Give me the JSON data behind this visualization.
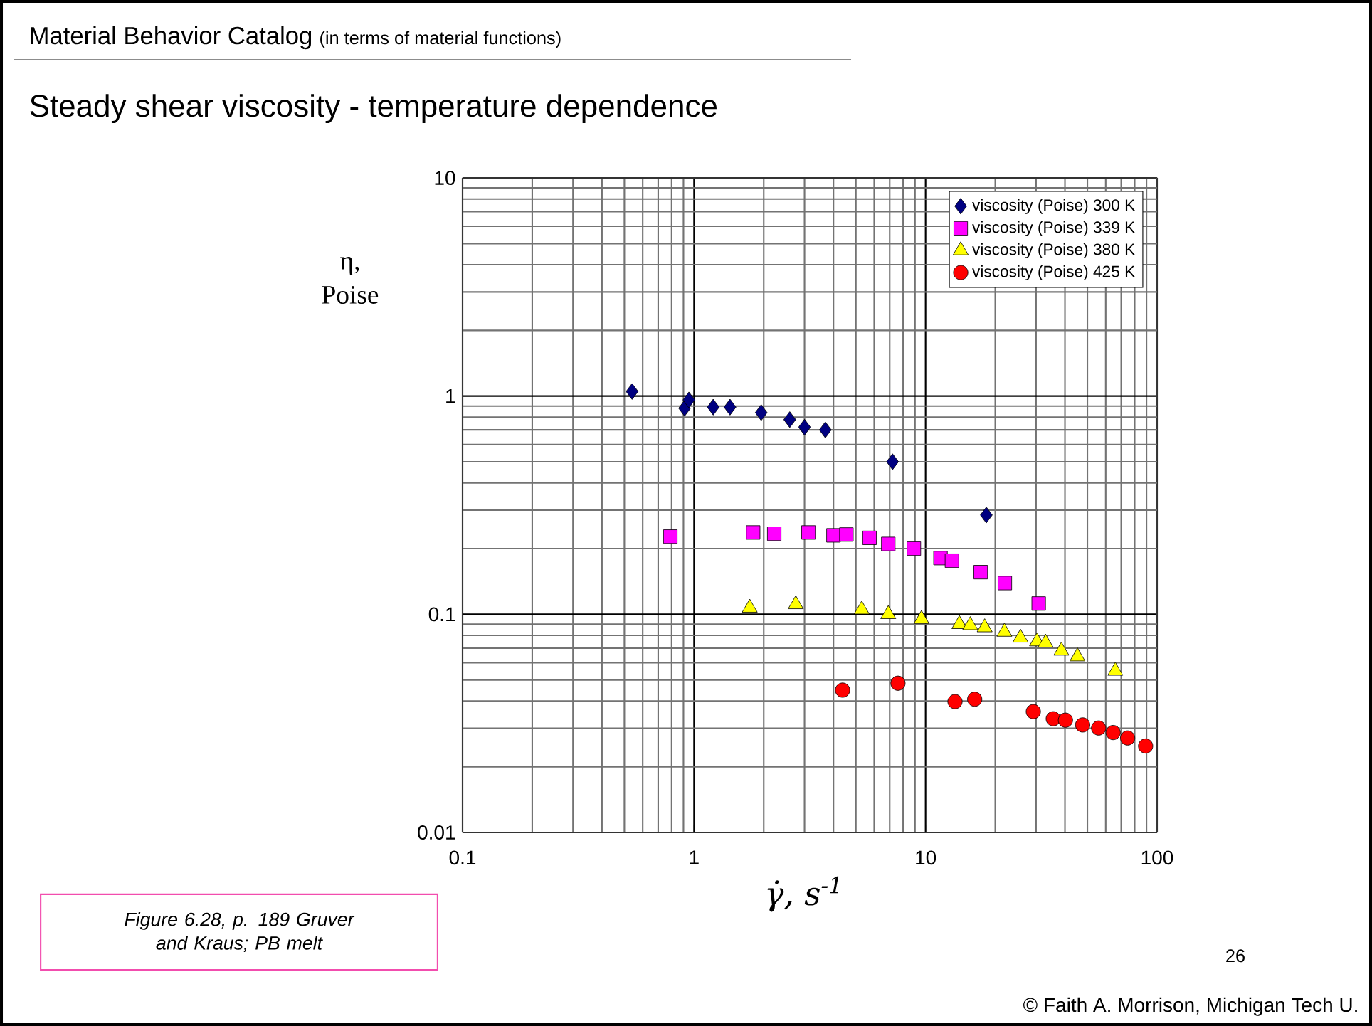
{
  "chart_data": {
    "type": "scatter",
    "title": "Material Behavior Catalog",
    "subtitle": "Steady shear viscosity - temperature dependence",
    "xlabel": "γ̇, s$^{-1}$",
    "ylabel": "η, Poise",
    "log": "xy",
    "grid": true,
    "legend": "top right",
    "xlim": [
      0.1,
      100
    ],
    "ylim": [
      0.01,
      10
    ],
    "xticks": [
      0.1,
      1,
      10,
      100
    ],
    "yticks": [
      0.01,
      0.1,
      1,
      10
    ],
    "series": [
      {
        "name": "viscosity (Poise) 300 K",
        "color": "#000080",
        "marker": "diamond",
        "x": [
          0.54,
          0.91,
          0.95,
          1.21,
          1.43,
          1.95,
          2.59,
          3.0,
          3.69,
          7.2,
          18.3
        ],
        "values": [
          1.05,
          0.88,
          0.96,
          0.89,
          0.89,
          0.84,
          0.78,
          0.72,
          0.7,
          0.5,
          0.285
        ]
      },
      {
        "name": "viscosity (Poise) 339 K",
        "color": "#ff00ff",
        "marker": "square",
        "x": [
          0.79,
          1.8,
          2.22,
          3.12,
          4.0,
          4.55,
          5.73,
          6.9,
          8.9,
          11.6,
          13.0,
          17.3,
          22,
          30.8
        ],
        "values": [
          0.227,
          0.237,
          0.234,
          0.237,
          0.23,
          0.232,
          0.224,
          0.21,
          0.2,
          0.181,
          0.176,
          0.156,
          0.139,
          0.112
        ]
      },
      {
        "name": "viscosity (Poise) 380 K",
        "color": "#ffff00",
        "marker": "triangle",
        "x": [
          1.74,
          2.75,
          5.3,
          6.9,
          9.6,
          14.0,
          15.6,
          18.0,
          21.9,
          25.7,
          30.3,
          33,
          38.6,
          45.3,
          66
        ],
        "values": [
          0.107,
          0.111,
          0.105,
          0.1,
          0.095,
          0.09,
          0.089,
          0.087,
          0.083,
          0.078,
          0.075,
          0.074,
          0.068,
          0.064,
          0.055
        ]
      },
      {
        "name": "viscosity (Poise) 425 K",
        "color": "#ff0000",
        "marker": "circle",
        "x": [
          4.38,
          7.6,
          13.4,
          16.3,
          29.2,
          35.6,
          40.2,
          47.7,
          55.9,
          64.6,
          74.6,
          89.2
        ],
        "values": [
          0.0449,
          0.0483,
          0.0398,
          0.0408,
          0.0358,
          0.0332,
          0.0327,
          0.0311,
          0.0301,
          0.0287,
          0.0271,
          0.0249
        ]
      }
    ],
    "annotations": [
      "(in terms of material functions)",
      "Figure 6.28, p. 189 Gruver and Kraus; PB melt",
      "26",
      "© Faith A. Morrison, Michigan Tech U."
    ]
  }
}
